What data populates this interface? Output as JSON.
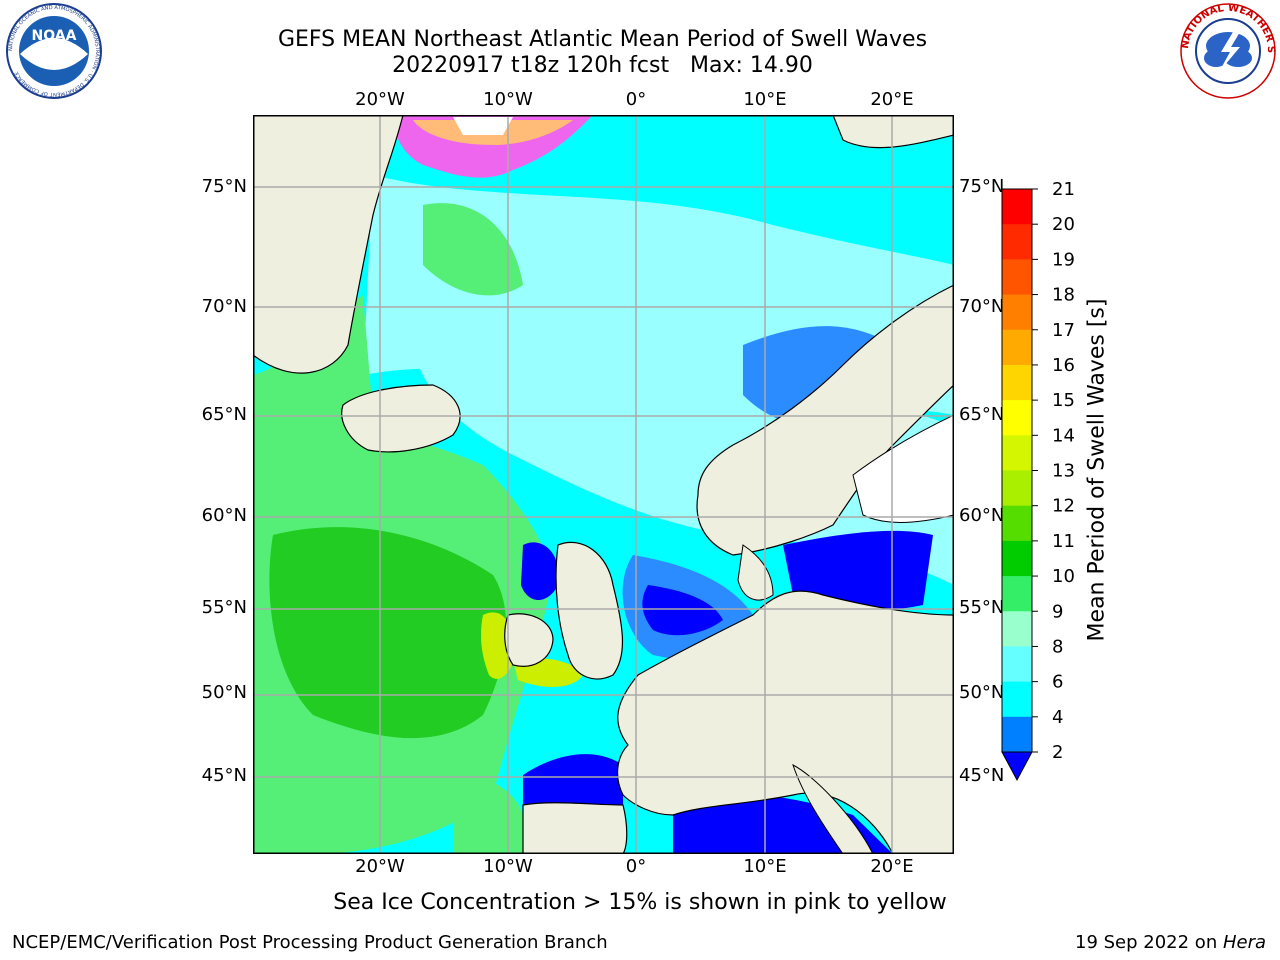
{
  "header": {
    "title_line1": "GEFS MEAN Northeast Atlantic Mean Period of Swell Waves",
    "title_line2": "20220917 t18z 120h fcst   Max: 14.90"
  },
  "logos": {
    "left_text": "NOAA",
    "left_ring_text": "NATIONAL OCEANIC AND ATMOSPHERIC ADMINISTRATION · U.S. DEPARTMENT OF COMMERCE",
    "right_ring_text": "NATIONAL WEATHER SERVICE"
  },
  "map": {
    "lon_labels": [
      "20°W",
      "10°W",
      "0°",
      "10°E",
      "20°E"
    ],
    "lat_labels": [
      "75°N",
      "70°N",
      "65°N",
      "60°N",
      "55°N",
      "50°N",
      "45°N"
    ],
    "colors": {
      "ocean_low": "#0000ff",
      "ocean_mid": "#00ffff",
      "ocean_high": "#00cc00",
      "land": "#efefdf",
      "grid": "#aaaaaa"
    }
  },
  "colorbar": {
    "title": "Mean Period of Swell Waves [s]",
    "ticks": [
      "21",
      "20",
      "19",
      "18",
      "17",
      "16",
      "15",
      "14",
      "13",
      "12",
      "11",
      "10",
      "9",
      "8",
      "6",
      "4",
      "2"
    ],
    "colors": [
      "#ff0000",
      "#ff2a00",
      "#ff5500",
      "#ff8000",
      "#ffaa00",
      "#ffd500",
      "#ffff00",
      "#d4f700",
      "#aaee00",
      "#55dd00",
      "#00cc00",
      "#33ee66",
      "#99ffcc",
      "#66ffff",
      "#00ffff",
      "#0080ff"
    ],
    "extend_color": "#0000ff"
  },
  "caption": "Sea Ice Concentration > 15% is shown in pink to yellow",
  "footer": {
    "left": "NCEP/EMC/Verification Post Processing Product Generation Branch",
    "right_date": "19 Sep 2022 on ",
    "right_host": "Hera"
  }
}
